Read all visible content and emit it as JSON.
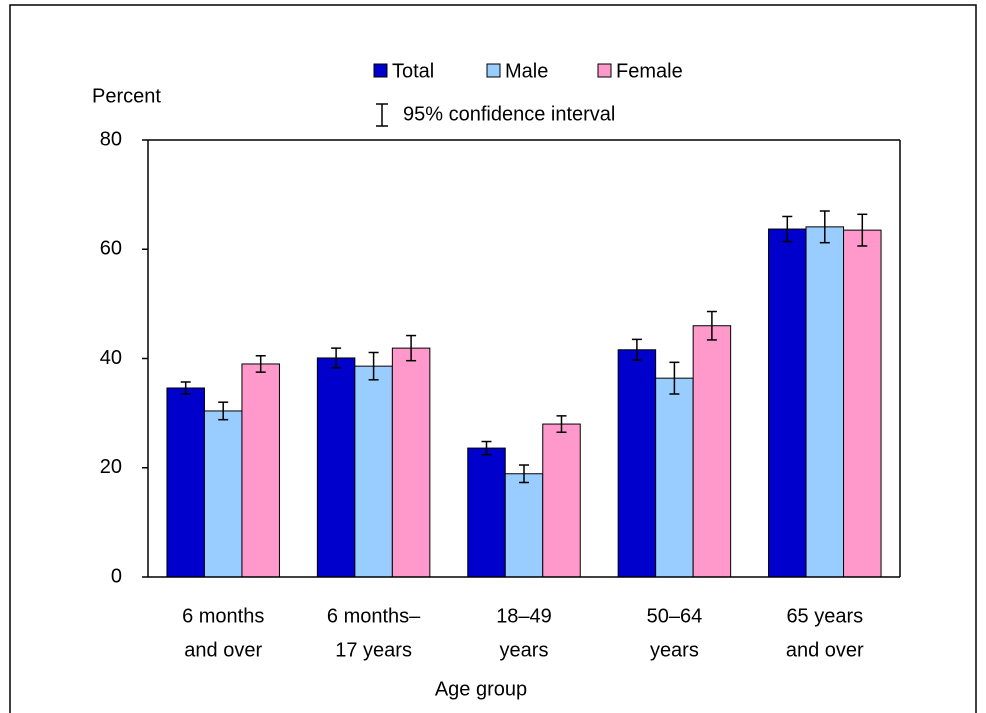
{
  "chart_data": {
    "type": "bar",
    "y_label": "Percent",
    "x_label": "Age group",
    "error_label": "95% confidence interval",
    "categories": [
      [
        "6 months",
        "and over"
      ],
      [
        "6 months–",
        "17 years"
      ],
      [
        "18–49",
        "years"
      ],
      [
        "50–64",
        "years"
      ],
      [
        "65 years",
        "and over"
      ]
    ],
    "series": [
      {
        "name": "Total",
        "color": "#0000cc",
        "values": [
          34.6,
          40.1,
          23.6,
          41.6,
          63.7
        ],
        "errors": [
          1.1,
          1.8,
          1.2,
          1.9,
          2.3
        ]
      },
      {
        "name": "Male",
        "color": "#99ccff",
        "values": [
          30.4,
          38.6,
          18.9,
          36.4,
          64.1
        ],
        "errors": [
          1.6,
          2.5,
          1.6,
          2.9,
          2.9
        ]
      },
      {
        "name": "Female",
        "color": "#ff99cc",
        "values": [
          39.0,
          41.9,
          28.0,
          46.0,
          63.5
        ],
        "errors": [
          1.5,
          2.3,
          1.5,
          2.6,
          2.9
        ]
      }
    ],
    "ylim": [
      0,
      80
    ],
    "yticks": [
      0,
      20,
      40,
      60,
      80
    ]
  }
}
